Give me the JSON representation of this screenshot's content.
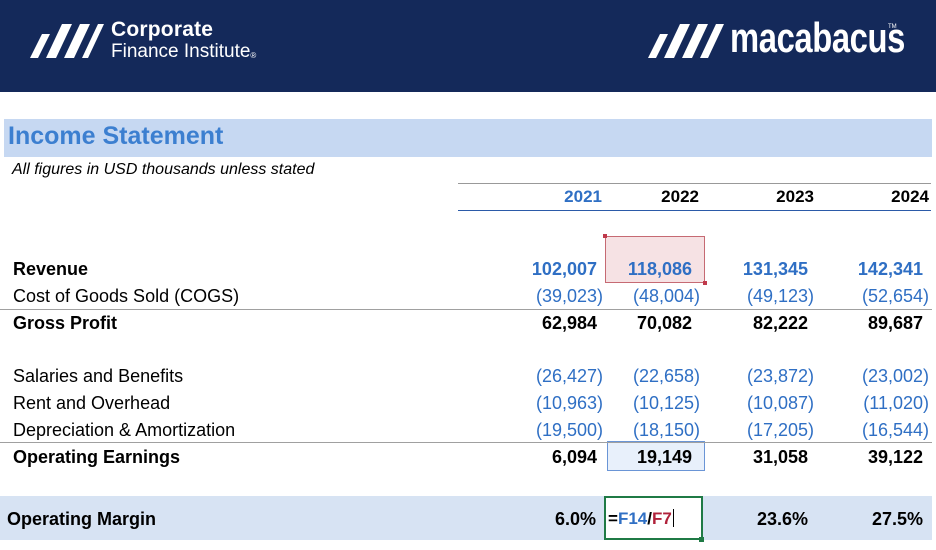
{
  "branding": {
    "cfi_line1": "Corporate",
    "cfi_line2": "Finance Institute",
    "cfi_reg": "®",
    "macabacus": "macabacus",
    "macabacus_tm": "TM"
  },
  "sheet": {
    "title": "Income Statement",
    "subtitle": "All figures in USD thousands unless stated",
    "years": [
      "2021",
      "2022",
      "2023",
      "2024"
    ]
  },
  "rows": {
    "revenue": {
      "label": "Revenue",
      "values": [
        "102,007",
        "118,086",
        "131,345",
        "142,341"
      ]
    },
    "cogs": {
      "label": "Cost of Goods Sold (COGS)",
      "values": [
        "(39,023)",
        "(48,004)",
        "(49,123)",
        "(52,654)"
      ]
    },
    "gross_profit": {
      "label": "Gross Profit",
      "values": [
        "62,984",
        "70,082",
        "82,222",
        "89,687"
      ]
    },
    "salaries": {
      "label": "Salaries and Benefits",
      "values": [
        "(26,427)",
        "(22,658)",
        "(23,872)",
        "(23,002)"
      ]
    },
    "rent": {
      "label": "Rent and Overhead",
      "values": [
        "(10,963)",
        "(10,125)",
        "(10,087)",
        "(11,020)"
      ]
    },
    "da": {
      "label": "Depreciation & Amortization",
      "values": [
        "(19,500)",
        "(18,150)",
        "(17,205)",
        "(16,544)"
      ]
    },
    "op_earnings": {
      "label": "Operating Earnings",
      "values": [
        "6,094",
        "19,149",
        "31,058",
        "39,122"
      ]
    },
    "op_margin": {
      "label": "Operating Margin",
      "values": [
        "6.0%",
        "",
        "23.6%",
        "27.5%"
      ]
    }
  },
  "edit": {
    "eq": "=",
    "ref1": "F14",
    "slash": "/",
    "ref2": "F7"
  },
  "colors": {
    "banner": "#14295a",
    "title_band": "#c6d8f2",
    "input_blue": "#2f6fc4",
    "edit_border": "#1f7a45",
    "ref_red": "#b0213a"
  }
}
